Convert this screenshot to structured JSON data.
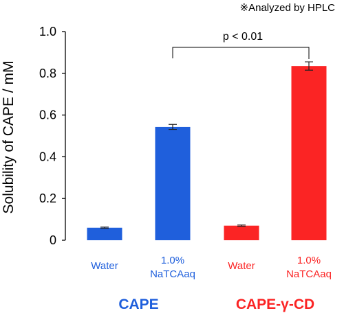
{
  "note": "※Analyzed by HPLC",
  "chart_data": {
    "type": "bar",
    "title": "",
    "xlabel": "",
    "ylabel": "Solubility of CAPE / mM",
    "ylim": [
      0,
      1.0
    ],
    "yticks": [
      "0",
      "0.2",
      "0.4",
      "0.6",
      "0.8",
      "1.0"
    ],
    "grid": false,
    "categories": [
      {
        "line1": "Water",
        "line2": ""
      },
      {
        "line1": "1.0%",
        "line2": "NaTCAaq"
      },
      {
        "line1": "Water",
        "line2": ""
      },
      {
        "line1": "1.0%",
        "line2": "NaTCAaq"
      }
    ],
    "values": [
      0.06,
      0.543,
      0.07,
      0.835
    ],
    "errors": [
      0.003,
      0.012,
      0.003,
      0.02
    ],
    "bar_colors": [
      "#1f5fdc",
      "#1f5fdc",
      "#fb2424",
      "#fb2424"
    ],
    "groups": [
      {
        "name": "CAPE",
        "color": "#1f5fdc"
      },
      {
        "name": "CAPE-γ-CD",
        "color": "#fb2424"
      }
    ],
    "annotation": {
      "text": "p < 0.01",
      "from_bar": 1,
      "to_bar": 3
    }
  }
}
